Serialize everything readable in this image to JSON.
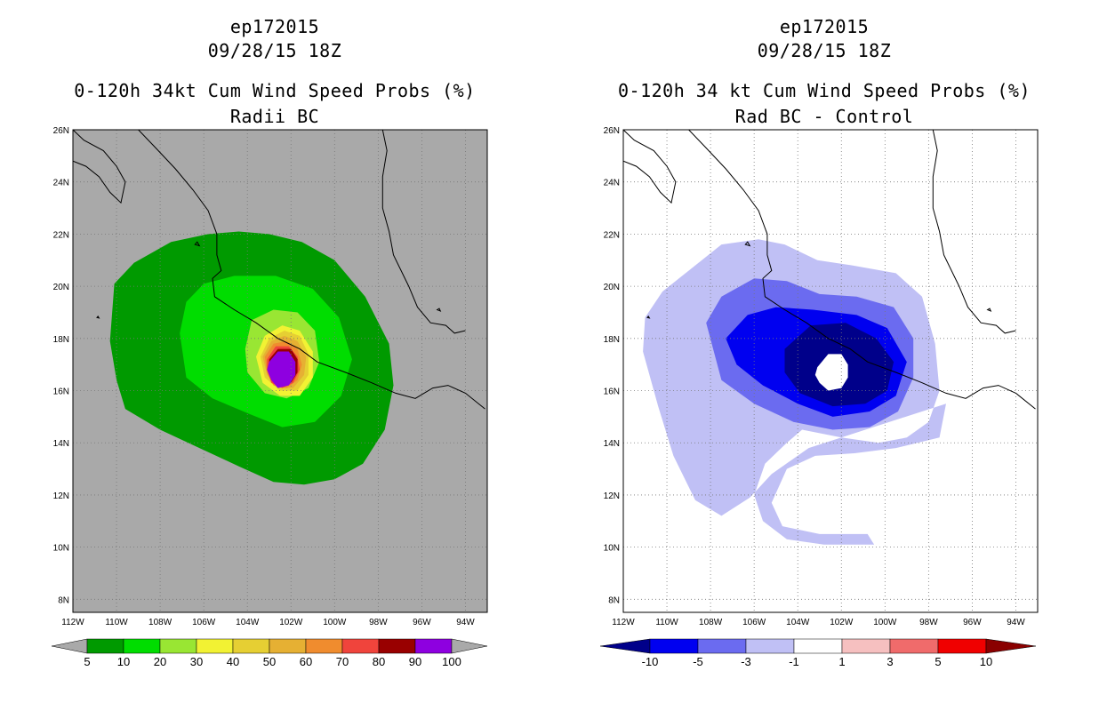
{
  "chart_data": [
    {
      "type": "heatmap",
      "id": "left",
      "title_lines": [
        "ep172015",
        "09/28/15 18Z",
        "0-120h 34kt Cum Wind Speed Probs (%)",
        "Radii BC"
      ],
      "x_tick_labels": [
        "112W",
        "110W",
        "108W",
        "106W",
        "104W",
        "102W",
        "100W",
        "98W",
        "96W",
        "94W"
      ],
      "y_tick_labels": [
        "26N",
        "24N",
        "22N",
        "20N",
        "18N",
        "16N",
        "14N",
        "12N",
        "10N",
        "8N"
      ],
      "xlim": [
        -112,
        -93
      ],
      "ylim": [
        7.5,
        26
      ],
      "grid": true,
      "background": "#a9a9a9",
      "colorbar": {
        "labels": [
          "5",
          "10",
          "20",
          "30",
          "40",
          "50",
          "60",
          "70",
          "80",
          "90",
          "100"
        ],
        "colors": [
          "#009a00",
          "#00dd00",
          "#99e633",
          "#f2f233",
          "#e6cf33",
          "#e6b033",
          "#f08c2e",
          "#f0443c",
          "#990000",
          "#8e00e0"
        ],
        "end_color": "#a9a9a9"
      },
      "contours": [
        {
          "level": "5-10",
          "color": "#009a00",
          "points": [
            [
              -110.1,
              20.1
            ],
            [
              -109.2,
              20.9
            ],
            [
              -107.5,
              21.7
            ],
            [
              -105.8,
              22
            ],
            [
              -104.4,
              22.1
            ],
            [
              -103,
              22
            ],
            [
              -101.5,
              21.7
            ],
            [
              -100,
              21
            ],
            [
              -98.6,
              19.6
            ],
            [
              -97.5,
              17.8
            ],
            [
              -97.3,
              16.2
            ],
            [
              -97.7,
              14.5
            ],
            [
              -98.7,
              13.2
            ],
            [
              -100,
              12.6
            ],
            [
              -101.4,
              12.4
            ],
            [
              -102.8,
              12.5
            ],
            [
              -104.4,
              13.1
            ],
            [
              -106.2,
              13.8
            ],
            [
              -108,
              14.5
            ],
            [
              -109.6,
              15.3
            ],
            [
              -110,
              16.4
            ],
            [
              -110.3,
              17.9
            ]
          ]
        },
        {
          "level": "10-20",
          "color": "#00dd00",
          "points": [
            [
              -107.1,
              18.2
            ],
            [
              -106.8,
              19.4
            ],
            [
              -106,
              20.1
            ],
            [
              -104.6,
              20.4
            ],
            [
              -102.7,
              20.4
            ],
            [
              -101,
              19.9
            ],
            [
              -99.8,
              18.8
            ],
            [
              -99.2,
              17.2
            ],
            [
              -99.7,
              15.8
            ],
            [
              -100.9,
              14.8
            ],
            [
              -102.4,
              14.6
            ],
            [
              -103.9,
              15.1
            ],
            [
              -105.6,
              15.7
            ],
            [
              -106.8,
              16.5
            ]
          ]
        },
        {
          "level": "20-30",
          "color": "#99e633",
          "points": [
            [
              -104.1,
              17.6
            ],
            [
              -103.8,
              18.7
            ],
            [
              -102.8,
              19.1
            ],
            [
              -101.7,
              19
            ],
            [
              -100.9,
              18.3
            ],
            [
              -100.7,
              17.1
            ],
            [
              -101.2,
              16.1
            ],
            [
              -102.2,
              15.7
            ],
            [
              -103.2,
              15.9
            ],
            [
              -104,
              16.7
            ]
          ]
        },
        {
          "level": "30-40",
          "color": "#f2f233",
          "points": [
            [
              -103.6,
              17.3
            ],
            [
              -103.2,
              18.1
            ],
            [
              -102.4,
              18.5
            ],
            [
              -101.6,
              18.3
            ],
            [
              -101,
              17.5
            ],
            [
              -101,
              16.5
            ],
            [
              -101.6,
              15.8
            ],
            [
              -102.5,
              15.8
            ],
            [
              -103.3,
              16.3
            ]
          ]
        },
        {
          "level": "40-50",
          "color": "#e6cf33",
          "points": [
            [
              -103.4,
              17.3
            ],
            [
              -103,
              18
            ],
            [
              -102.3,
              18.3
            ],
            [
              -101.6,
              18.1
            ],
            [
              -101.2,
              17.4
            ],
            [
              -101.2,
              16.6
            ],
            [
              -101.7,
              16
            ],
            [
              -102.5,
              16
            ],
            [
              -103.2,
              16.5
            ]
          ]
        },
        {
          "level": "50-60",
          "color": "#e6b033",
          "points": [
            [
              -103.3,
              17.3
            ],
            [
              -102.9,
              17.9
            ],
            [
              -102.3,
              18.1
            ],
            [
              -101.7,
              17.9
            ],
            [
              -101.3,
              17.3
            ],
            [
              -101.4,
              16.6
            ],
            [
              -101.9,
              16.1
            ],
            [
              -102.6,
              16.1
            ],
            [
              -103.1,
              16.6
            ]
          ]
        },
        {
          "level": "60-70",
          "color": "#f08c2e",
          "points": [
            [
              -103.2,
              17.3
            ],
            [
              -102.8,
              17.8
            ],
            [
              -102.2,
              17.9
            ],
            [
              -101.7,
              17.6
            ],
            [
              -101.5,
              17
            ],
            [
              -101.7,
              16.4
            ],
            [
              -102.2,
              16.1
            ],
            [
              -102.8,
              16.2
            ],
            [
              -103.1,
              16.7
            ]
          ]
        },
        {
          "level": "70-80",
          "color": "#f0443c",
          "points": [
            [
              -103.1,
              17.2
            ],
            [
              -102.7,
              17.7
            ],
            [
              -102.1,
              17.7
            ],
            [
              -101.7,
              17.3
            ],
            [
              -101.6,
              16.8
            ],
            [
              -101.9,
              16.3
            ],
            [
              -102.4,
              16.1
            ],
            [
              -102.9,
              16.3
            ],
            [
              -103.1,
              16.8
            ]
          ]
        },
        {
          "level": "80-90",
          "color": "#990000",
          "points": [
            [
              -103,
              17.2
            ],
            [
              -102.6,
              17.6
            ],
            [
              -102,
              17.6
            ],
            [
              -101.7,
              17.2
            ],
            [
              -101.7,
              16.7
            ],
            [
              -102,
              16.3
            ],
            [
              -102.5,
              16.2
            ],
            [
              -102.9,
              16.4
            ],
            [
              -103,
              16.8
            ]
          ]
        },
        {
          "level": "90-100",
          "color": "#8e00e0",
          "points": [
            [
              -103,
              17.1
            ],
            [
              -102.6,
              17.5
            ],
            [
              -102.1,
              17.5
            ],
            [
              -101.8,
              17.1
            ],
            [
              -101.8,
              16.6
            ],
            [
              -102.1,
              16.2
            ],
            [
              -102.6,
              16.1
            ],
            [
              -102.9,
              16.4
            ],
            [
              -103.1,
              16.8
            ]
          ]
        }
      ]
    },
    {
      "type": "heatmap",
      "id": "right",
      "title_lines": [
        "ep172015",
        "09/28/15 18Z",
        "0-120h 34 kt Cum Wind Speed Probs (%)",
        "Rad BC - Control"
      ],
      "x_tick_labels": [
        "112W",
        "110W",
        "108W",
        "106W",
        "104W",
        "102W",
        "100W",
        "98W",
        "96W",
        "94W"
      ],
      "y_tick_labels": [
        "26N",
        "24N",
        "22N",
        "20N",
        "18N",
        "16N",
        "14N",
        "12N",
        "10N",
        "8N"
      ],
      "xlim": [
        -112,
        -93
      ],
      "ylim": [
        7.5,
        26
      ],
      "grid": true,
      "background": "#ffffff",
      "colorbar": {
        "labels": [
          "-10",
          "-5",
          "-3",
          "-1",
          "1",
          "3",
          "5",
          "10"
        ],
        "colors": [
          "#0000f0",
          "#6b6bf0",
          "#c0c0f5",
          "#ffffff",
          "#f6c0c0",
          "#f06b6b",
          "#f00000"
        ],
        "low_end_color": "#00008a",
        "high_end_color": "#8a0000"
      },
      "contours": [
        {
          "level": "-3 to -1",
          "color": "#c0c0f5",
          "points": [
            [
              -110.2,
              19.8
            ],
            [
              -109,
              20.6
            ],
            [
              -107.5,
              21.6
            ],
            [
              -105.8,
              21.8
            ],
            [
              -104.6,
              21.6
            ],
            [
              -103.1,
              21
            ],
            [
              -101.5,
              20.8
            ],
            [
              -99.5,
              20.5
            ],
            [
              -98.3,
              19.6
            ],
            [
              -97.7,
              17.8
            ],
            [
              -97.5,
              16
            ],
            [
              -98,
              14.8
            ],
            [
              -99,
              14.2
            ],
            [
              -100.3,
              14
            ],
            [
              -102,
              14.2
            ],
            [
              -103.8,
              14.5
            ],
            [
              -104.5,
              14
            ],
            [
              -105.5,
              13.2
            ],
            [
              -106,
              12
            ],
            [
              -105.6,
              11
            ],
            [
              -104.5,
              10.3
            ],
            [
              -102.8,
              10.1
            ],
            [
              -100.5,
              10.1
            ],
            [
              -100.8,
              10.5
            ],
            [
              -103,
              10.5
            ],
            [
              -104.7,
              10.8
            ],
            [
              -105.2,
              11.7
            ],
            [
              -104.5,
              13
            ],
            [
              -103.2,
              13.5
            ],
            [
              -101.4,
              13.6
            ],
            [
              -99.5,
              13.8
            ],
            [
              -97.5,
              14.2
            ],
            [
              -97.2,
              15.5
            ],
            [
              -103.5,
              13.8
            ],
            [
              -105.2,
              12.8
            ],
            [
              -106.2,
              11.9
            ],
            [
              -107.5,
              11.2
            ],
            [
              -108.7,
              11.8
            ],
            [
              -109.7,
              13.5
            ],
            [
              -110.4,
              15.4
            ],
            [
              -111.1,
              17.5
            ],
            [
              -111,
              18.8
            ]
          ]
        },
        {
          "level": "-5 to -3",
          "color": "#6b6bf0",
          "points": [
            [
              -108.2,
              18.6
            ],
            [
              -107.5,
              19.6
            ],
            [
              -106,
              20.3
            ],
            [
              -104.5,
              20.2
            ],
            [
              -103,
              19.7
            ],
            [
              -101.3,
              19.6
            ],
            [
              -99.6,
              19.2
            ],
            [
              -98.7,
              18
            ],
            [
              -98.7,
              16.5
            ],
            [
              -99.4,
              15.2
            ],
            [
              -100.7,
              14.6
            ],
            [
              -102.4,
              14.5
            ],
            [
              -104.2,
              14.8
            ],
            [
              -106,
              15.5
            ],
            [
              -107.5,
              16.4
            ]
          ]
        },
        {
          "level": "-10 to -5",
          "color": "#0000f0",
          "points": [
            [
              -107.3,
              18
            ],
            [
              -106.3,
              18.9
            ],
            [
              -105,
              19.2
            ],
            [
              -103.3,
              19.1
            ],
            [
              -101.3,
              18.9
            ],
            [
              -99.9,
              18.4
            ],
            [
              -99,
              17.1
            ],
            [
              -99.5,
              15.8
            ],
            [
              -100.7,
              15.2
            ],
            [
              -102.4,
              15
            ],
            [
              -104,
              15.5
            ],
            [
              -105.6,
              16.2
            ],
            [
              -106.8,
              17
            ]
          ]
        },
        {
          "level": "< -10",
          "color": "#00008a",
          "points": [
            [
              -104.6,
              17.6
            ],
            [
              -103.4,
              18.5
            ],
            [
              -101.8,
              18.6
            ],
            [
              -100.4,
              18
            ],
            [
              -99.6,
              17.1
            ],
            [
              -99.9,
              16
            ],
            [
              -100.9,
              15.5
            ],
            [
              -102.4,
              15.4
            ],
            [
              -103.9,
              15.9
            ],
            [
              -104.6,
              16.7
            ]
          ]
        },
        {
          "level": "-1 to 1 (center)",
          "color": "#ffffff",
          "points": [
            [
              -103.1,
              16.9
            ],
            [
              -102.6,
              17.4
            ],
            [
              -102,
              17.4
            ],
            [
              -101.7,
              17
            ],
            [
              -101.7,
              16.5
            ],
            [
              -102,
              16.1
            ],
            [
              -102.6,
              16
            ],
            [
              -103,
              16.3
            ],
            [
              -103.2,
              16.6
            ]
          ]
        }
      ]
    }
  ]
}
